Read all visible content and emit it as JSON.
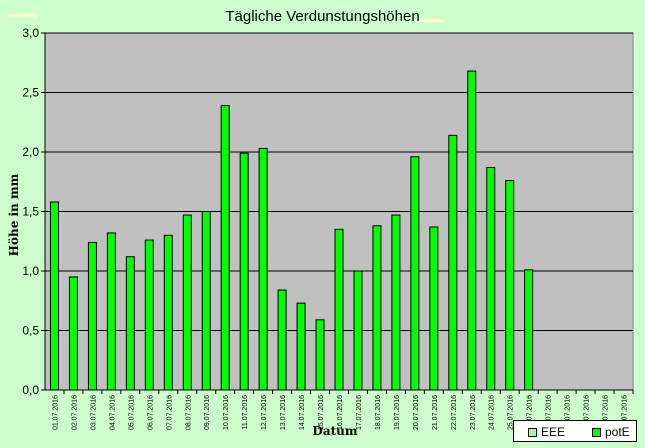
{
  "chart_data": {
    "type": "bar",
    "title": "Tägliche Verdunstungshöhen",
    "ylabel": "Höhe in mm",
    "xlabel": "Datum",
    "ylim": [
      0,
      3
    ],
    "yticks": [
      "0,0",
      "0,5",
      "1,0",
      "1,5",
      "2,0",
      "2,5",
      "3,0"
    ],
    "grid": true,
    "legend_position": "bottom-right",
    "colors": {
      "potE": "#00ff00",
      "EEE": "#99ff99",
      "plot_bg": "#c0c0c0",
      "page_bg": "#ccffcc"
    },
    "categories": [
      "01.07.2016",
      "02.07.2016",
      "03.07.2016",
      "04.07.2016",
      "05.07.2016",
      "06.07.2016",
      "07.07.2016",
      "08.07.2016",
      "09.07.2016",
      "10.07.2016",
      "11.07.2016",
      "12.07.2016",
      "13.07.2016",
      "14.07.2016",
      "15.07.2016",
      "16.07.2016",
      "17.07.2016",
      "18.07.2016",
      "19.07.2016",
      "20.07.2016",
      "21.07.2016",
      "22.07.2016",
      "23.07.2016",
      "24.07.2016",
      "25.07.2016",
      "26.07.2016",
      "27.07.2016",
      "28.07.2016",
      "29.07.2016",
      "30.07.2016",
      "31.07.2016"
    ],
    "series": [
      {
        "name": "EEE",
        "values": [
          null,
          null,
          null,
          null,
          null,
          null,
          null,
          null,
          null,
          null,
          null,
          null,
          null,
          null,
          null,
          null,
          null,
          null,
          null,
          null,
          null,
          null,
          null,
          null,
          null,
          null,
          null,
          null,
          null,
          null,
          null
        ]
      },
      {
        "name": "potE",
        "values": [
          1.58,
          0.95,
          1.24,
          1.32,
          1.12,
          1.26,
          1.3,
          1.47,
          1.5,
          2.39,
          1.99,
          2.03,
          0.84,
          0.73,
          0.59,
          1.35,
          1.0,
          1.38,
          1.47,
          1.96,
          1.37,
          2.14,
          2.68,
          1.87,
          1.76,
          1.01,
          null,
          null,
          null,
          null,
          null
        ]
      }
    ]
  }
}
